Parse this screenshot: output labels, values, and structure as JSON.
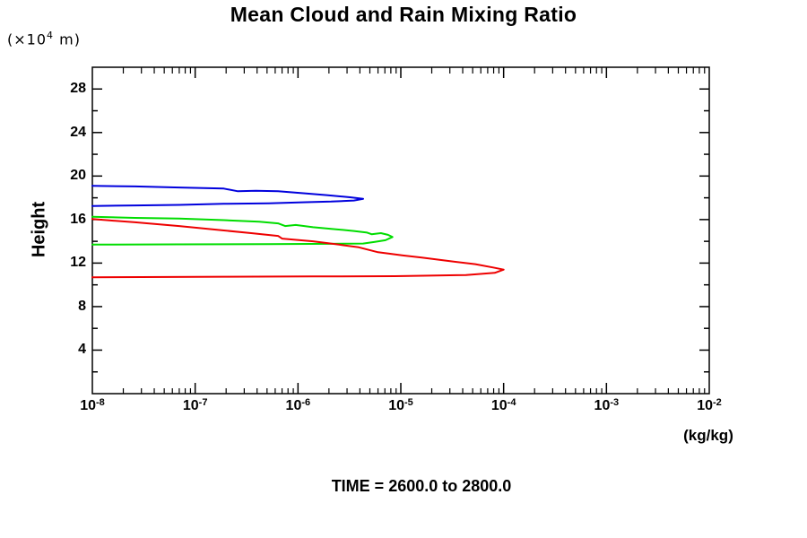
{
  "title": "Mean Cloud and Rain Mixing Ratio",
  "y_axis": {
    "unit_prefix": "(×10",
    "unit_exponent": "4",
    "unit_suffix": " m)",
    "axis_label": "Height",
    "tick_labels": [
      4,
      8,
      12,
      16,
      20,
      24,
      28
    ],
    "minor_step": 2
  },
  "x_axis": {
    "base": "10",
    "tick_exponents": [
      -8,
      -7,
      -6,
      -5,
      -4,
      -3,
      -2
    ],
    "unit_label": "(kg/kg)"
  },
  "footer": {
    "time_label": "TIME = 2600.0 to 2800.0"
  },
  "colors": {
    "frame": "#000000",
    "blue": "#0000dd",
    "green": "#00dd00",
    "red": "#ee0000"
  },
  "chart_data": {
    "type": "line",
    "title": "Mean Cloud and Rain Mixing Ratio",
    "xlabel": "(kg/kg)",
    "ylabel": "Height (x10^4 m)",
    "x_scale": "log",
    "xlim": [
      1e-08,
      0.01
    ],
    "ylim": [
      0,
      30
    ],
    "grid": false,
    "legend": "none",
    "annotation": "TIME = 2600.0 to 2800.0",
    "series": [
      {
        "name": "blue",
        "color": "#0000dd",
        "points": [
          [
            1e-08,
            19.1
          ],
          [
            2.6e-08,
            19.05
          ],
          [
            7e-08,
            18.95
          ],
          [
            1.9e-07,
            18.85
          ],
          [
            2.6e-07,
            18.6
          ],
          [
            3.9e-07,
            18.65
          ],
          [
            6.4e-07,
            18.6
          ],
          [
            1.2e-06,
            18.4
          ],
          [
            1.9e-06,
            18.25
          ],
          [
            3.2e-06,
            18.05
          ],
          [
            4.3e-06,
            17.9
          ],
          [
            3.5e-06,
            17.75
          ],
          [
            2.1e-06,
            17.65
          ],
          [
            1.2e-06,
            17.6
          ],
          [
            5.2e-07,
            17.5
          ],
          [
            1.9e-07,
            17.45
          ],
          [
            7e-08,
            17.35
          ],
          [
            2.6e-08,
            17.3
          ],
          [
            1e-08,
            17.25
          ]
        ]
      },
      {
        "name": "green",
        "color": "#00dd00",
        "points": [
          [
            1e-08,
            16.25
          ],
          [
            2.6e-08,
            16.15
          ],
          [
            7e-08,
            16.1
          ],
          [
            1.9e-07,
            15.95
          ],
          [
            4.2e-07,
            15.8
          ],
          [
            6.4e-07,
            15.65
          ],
          [
            7.5e-07,
            15.4
          ],
          [
            9.5e-07,
            15.5
          ],
          [
            1.4e-06,
            15.3
          ],
          [
            2.1e-06,
            15.15
          ],
          [
            3.5e-06,
            14.95
          ],
          [
            4.7e-06,
            14.8
          ],
          [
            5.2e-06,
            14.65
          ],
          [
            6.4e-06,
            14.75
          ],
          [
            7.5e-06,
            14.6
          ],
          [
            8.3e-06,
            14.4
          ],
          [
            7.1e-06,
            14.1
          ],
          [
            5.6e-06,
            13.95
          ],
          [
            4.3e-06,
            13.8
          ],
          [
            2.1e-06,
            13.77
          ],
          [
            5.2e-07,
            13.74
          ],
          [
            7e-08,
            13.72
          ],
          [
            1e-08,
            13.7
          ]
        ]
      },
      {
        "name": "red",
        "color": "#ee0000",
        "points": [
          [
            1e-08,
            16.05
          ],
          [
            2.6e-08,
            15.75
          ],
          [
            7e-08,
            15.4
          ],
          [
            1.9e-07,
            15.0
          ],
          [
            3.5e-07,
            14.75
          ],
          [
            6.4e-07,
            14.5
          ],
          [
            7e-07,
            14.25
          ],
          [
            1.4e-06,
            14.0
          ],
          [
            2.5e-06,
            13.7
          ],
          [
            3.9e-06,
            13.45
          ],
          [
            6e-06,
            13.0
          ],
          [
            1.05e-05,
            12.7
          ],
          [
            1.6e-05,
            12.5
          ],
          [
            2.9e-05,
            12.2
          ],
          [
            5.3e-05,
            11.9
          ],
          [
            7.9e-05,
            11.6
          ],
          [
            0.0001,
            11.4
          ],
          [
            8.2e-05,
            11.1
          ],
          [
            4.3e-05,
            10.9
          ],
          [
            1.9e-05,
            10.85
          ],
          [
            8.7e-06,
            10.8
          ],
          [
            1.4e-06,
            10.77
          ],
          [
            1.9e-07,
            10.75
          ],
          [
            1e-08,
            10.7
          ]
        ]
      }
    ]
  }
}
